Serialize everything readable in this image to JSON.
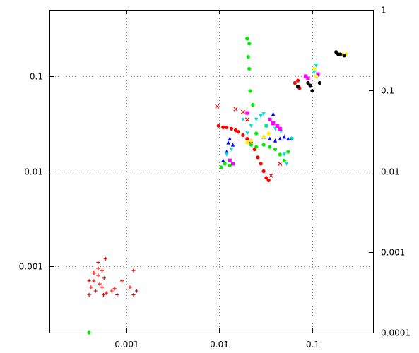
{
  "chart_data": {
    "type": "scatter",
    "title": "",
    "xlabel": "",
    "ylabel": "",
    "y2label": "",
    "x_scale": "log",
    "y_scale": "log",
    "y2_scale": "log",
    "xlim": [
      0.00015,
      0.45
    ],
    "ylim": [
      0.0002,
      0.5
    ],
    "y2lim": [
      0.0001,
      1
    ],
    "grid": true,
    "legend": "none",
    "x_ticks": [
      {
        "value": 0.001,
        "label": "0.001"
      },
      {
        "value": 0.01,
        "label": "0.01"
      },
      {
        "value": 0.1,
        "label": "0.1"
      }
    ],
    "y_ticks": [
      {
        "value": 0.001,
        "label": "0.001"
      },
      {
        "value": 0.01,
        "label": "0.01"
      },
      {
        "value": 0.1,
        "label": "0.1"
      }
    ],
    "y2_ticks": [
      {
        "value": 0.0001,
        "label": "0.0001"
      },
      {
        "value": 0.001,
        "label": "0.001"
      },
      {
        "value": 0.01,
        "label": "0.01"
      },
      {
        "value": 0.1,
        "label": "0.1"
      },
      {
        "value": 1,
        "label": "1"
      }
    ],
    "series": [
      {
        "color": "#ff0000",
        "marker": "plus",
        "points": [
          [
            0.0004,
            0.0005
          ],
          [
            0.00042,
            0.0006
          ],
          [
            0.00045,
            0.0007
          ],
          [
            0.00047,
            0.00055
          ],
          [
            0.0005,
            0.0008
          ],
          [
            0.00052,
            0.00065
          ],
          [
            0.00055,
            0.0009
          ],
          [
            0.00057,
            0.0005
          ],
          [
            0.0006,
            0.0012
          ],
          [
            0.00045,
            0.00085
          ],
          [
            0.0005,
            0.0011
          ],
          [
            0.00055,
            0.0006
          ],
          [
            0.0007,
            0.00055
          ],
          [
            0.00075,
            0.00058
          ],
          [
            0.0008,
            0.0005
          ],
          [
            0.0009,
            0.0007
          ],
          [
            0.0011,
            0.0006
          ],
          [
            0.0012,
            0.0005
          ],
          [
            0.0012,
            0.0009
          ],
          [
            0.0013,
            0.00055
          ],
          [
            0.0004,
            0.0007
          ],
          [
            0.00058,
            0.00075
          ],
          [
            0.00061,
            0.00052
          ],
          [
            0.0005,
            0.00095
          ]
        ]
      },
      {
        "color": "#ff0000",
        "marker": "circle",
        "points": [
          [
            0.0098,
            0.03
          ],
          [
            0.011,
            0.029
          ],
          [
            0.012,
            0.029
          ],
          [
            0.0135,
            0.028
          ],
          [
            0.015,
            0.027
          ],
          [
            0.016,
            0.026
          ],
          [
            0.018,
            0.024
          ],
          [
            0.02,
            0.022
          ],
          [
            0.022,
            0.02
          ],
          [
            0.024,
            0.017
          ],
          [
            0.026,
            0.014
          ],
          [
            0.028,
            0.012
          ],
          [
            0.03,
            0.01
          ],
          [
            0.032,
            0.0085
          ],
          [
            0.034,
            0.008
          ],
          [
            0.065,
            0.085
          ],
          [
            0.07,
            0.09
          ],
          [
            0.073,
            0.075
          ]
        ]
      },
      {
        "color": "#ff0000",
        "marker": "cross",
        "points": [
          [
            0.0095,
            0.048
          ],
          [
            0.015,
            0.045
          ],
          [
            0.018,
            0.042
          ],
          [
            0.02,
            0.035
          ],
          [
            0.036,
            0.009
          ],
          [
            0.045,
            0.012
          ]
        ]
      },
      {
        "color": "#00ee00",
        "marker": "circle",
        "points": [
          [
            0.02,
            0.25
          ],
          [
            0.021,
            0.22
          ],
          [
            0.0205,
            0.16
          ],
          [
            0.021,
            0.12
          ],
          [
            0.0215,
            0.07
          ],
          [
            0.023,
            0.05
          ],
          [
            0.0105,
            0.011
          ],
          [
            0.0115,
            0.012
          ],
          [
            0.013,
            0.0115
          ],
          [
            0.022,
            0.019
          ],
          [
            0.025,
            0.018
          ],
          [
            0.03,
            0.019
          ],
          [
            0.035,
            0.018
          ],
          [
            0.04,
            0.017
          ],
          [
            0.045,
            0.015
          ],
          [
            0.05,
            0.013
          ],
          [
            0.055,
            0.016
          ],
          [
            0.025,
            0.025
          ],
          [
            0.032,
            0.03
          ],
          [
            0.06,
            0.022
          ],
          [
            0.0004,
            0.0002
          ]
        ]
      },
      {
        "color": "#0000ff",
        "marker": "triangle",
        "points": [
          [
            0.011,
            0.013
          ],
          [
            0.012,
            0.016
          ],
          [
            0.0125,
            0.02
          ],
          [
            0.013,
            0.022
          ],
          [
            0.014,
            0.019
          ],
          [
            0.03,
            0.023
          ],
          [
            0.035,
            0.022
          ],
          [
            0.04,
            0.021
          ],
          [
            0.045,
            0.022
          ],
          [
            0.05,
            0.023
          ],
          [
            0.055,
            0.022
          ],
          [
            0.06,
            0.022
          ],
          [
            0.038,
            0.04
          ]
        ]
      },
      {
        "color": "#00e0e0",
        "marker": "triangle-down",
        "points": [
          [
            0.012,
            0.015
          ],
          [
            0.0135,
            0.017
          ],
          [
            0.018,
            0.035
          ],
          [
            0.02,
            0.025
          ],
          [
            0.022,
            0.03
          ],
          [
            0.025,
            0.035
          ],
          [
            0.028,
            0.038
          ],
          [
            0.03,
            0.04
          ],
          [
            0.032,
            0.03
          ],
          [
            0.04,
            0.028
          ],
          [
            0.046,
            0.026
          ],
          [
            0.05,
            0.015
          ],
          [
            0.053,
            0.012
          ],
          [
            0.06,
            0.022
          ],
          [
            0.105,
            0.11
          ],
          [
            0.11,
            0.13
          ]
        ]
      },
      {
        "color": "#ff00ff",
        "marker": "square",
        "points": [
          [
            0.013,
            0.013
          ],
          [
            0.014,
            0.012
          ],
          [
            0.035,
            0.035
          ],
          [
            0.038,
            0.032
          ],
          [
            0.042,
            0.03
          ],
          [
            0.045,
            0.028
          ],
          [
            0.02,
            0.041
          ],
          [
            0.085,
            0.1
          ],
          [
            0.09,
            0.095
          ],
          [
            0.115,
            0.105
          ]
        ]
      },
      {
        "color": "#ffee00",
        "marker": "circle",
        "points": [
          [
            0.02,
            0.02
          ],
          [
            0.022,
            0.021
          ],
          [
            0.03,
            0.023
          ],
          [
            0.034,
            0.025
          ],
          [
            0.21,
            0.17
          ],
          [
            0.23,
            0.17
          ],
          [
            0.105,
            0.12
          ],
          [
            0.11,
            0.1
          ]
        ]
      },
      {
        "color": "#000000",
        "marker": "circle",
        "points": [
          [
            0.18,
            0.18
          ],
          [
            0.19,
            0.17
          ],
          [
            0.2,
            0.17
          ],
          [
            0.22,
            0.165
          ],
          [
            0.09,
            0.085
          ],
          [
            0.095,
            0.08
          ],
          [
            0.1,
            0.07
          ],
          [
            0.12,
            0.085
          ],
          [
            0.07,
            0.078
          ]
        ]
      }
    ]
  }
}
